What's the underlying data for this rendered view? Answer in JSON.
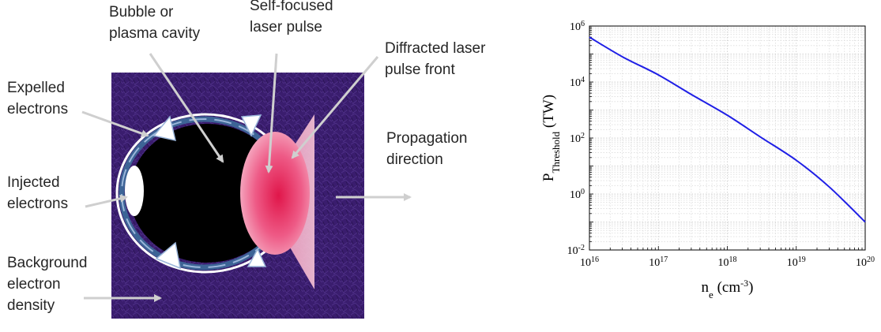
{
  "diagram": {
    "labels": {
      "bubble": "Bubble or\nplasma cavity",
      "self_focused": "Self-focused\nlaser pulse",
      "diffracted": "Diffracted laser\npulse front",
      "expelled": "Expelled\nelectrons",
      "injected": "Injected\nelectrons",
      "propagation": "Propagation\ndirection",
      "background": "Background\nelectron\ndensity"
    },
    "colors": {
      "background_medium": "#3a1d6e",
      "cavity": "#000000",
      "laser_core": "#e0164a",
      "laser_front": "#f4a9c4",
      "sheath": "#3d6496",
      "arrow": "#cfcfcf"
    }
  },
  "chart_data": {
    "type": "line",
    "x_scale": "log",
    "y_scale": "log",
    "xlim": [
      1e+16,
      1e+20
    ],
    "ylim": [
      0.01,
      1000000
    ],
    "grid": true,
    "x_ticks": [
      {
        "value": 1e+16,
        "base": "10",
        "exp": "16"
      },
      {
        "value": 1e+17,
        "base": "10",
        "exp": "17"
      },
      {
        "value": 1e+18,
        "base": "10",
        "exp": "18"
      },
      {
        "value": 1e+19,
        "base": "10",
        "exp": "19"
      },
      {
        "value": 1e+20,
        "base": "10",
        "exp": "20"
      }
    ],
    "y_ticks": [
      {
        "value": 0.01,
        "base": "10",
        "exp": "-2"
      },
      {
        "value": 1,
        "base": "10",
        "exp": "0"
      },
      {
        "value": 100,
        "base": "10",
        "exp": "2"
      },
      {
        "value": 10000,
        "base": "10",
        "exp": "4"
      },
      {
        "value": 1000000,
        "base": "10",
        "exp": "6"
      }
    ],
    "xlabel": {
      "main": "n",
      "sub": "e",
      "unit_pre": " (cm",
      "unit_sup": "-3",
      "unit_post": ")"
    },
    "ylabel": {
      "main": "P",
      "sub": "Threshold",
      "unit": " (TW)"
    },
    "series": [
      {
        "color": "#1f1fe6",
        "x": [
          1e+16,
          3e+16,
          1e+17,
          3e+17,
          1e+18,
          3e+18,
          1e+19,
          3e+19,
          1e+20
        ],
        "y": [
          400000,
          80000,
          18000,
          3600,
          650,
          110,
          16,
          1.8,
          0.1
        ]
      }
    ]
  }
}
